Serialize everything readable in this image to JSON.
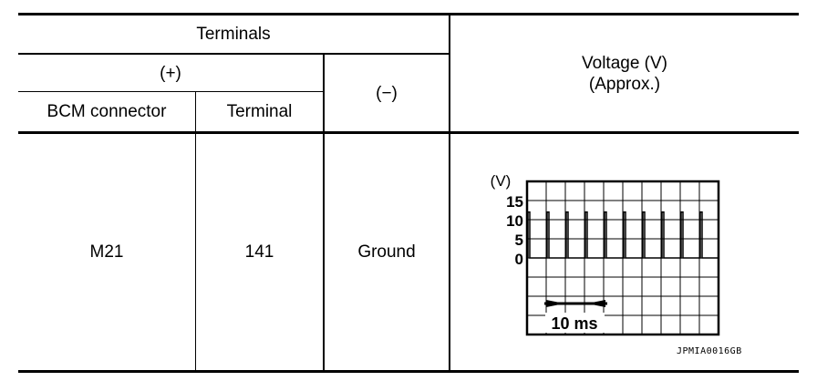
{
  "table": {
    "header": {
      "terminals": "Terminals",
      "plus": "(+)",
      "minus": "(−)",
      "bcm_connector": "BCM connector",
      "terminal": "Terminal",
      "voltage": "Voltage (V)",
      "approx": "(Approx.)"
    },
    "rows": [
      {
        "bcm_connector": "M21",
        "terminal": "141",
        "minus": "Ground"
      }
    ]
  },
  "waveform": {
    "y_unit_label": "(V)",
    "y_ticks": [
      "15",
      "10",
      "5",
      "0"
    ],
    "volts_per_division": 5,
    "pulse_peak_volts": 12,
    "pulse_count": 10,
    "time_annotation": "10 ms",
    "figure_code": "JPMIA0016GB"
  }
}
